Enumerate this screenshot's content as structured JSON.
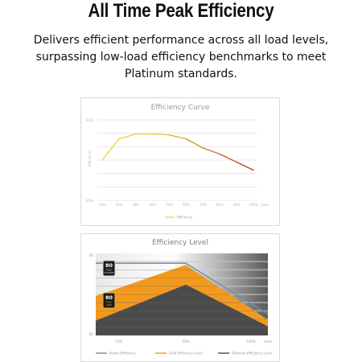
{
  "page": {
    "headline": "All Time Peak Efficiency",
    "description_line1": "Delivers efficient performance across all load levels,",
    "description_line2": "surpassing low-load efficiency benchmarks to meet",
    "description_line3": "Platinum standards."
  },
  "chart_data": [
    {
      "type": "line",
      "title": "Efficiency Curve",
      "ylabel": "Efficiency",
      "xlabel": "Load",
      "categories": [
        "10%",
        "20%",
        "30%",
        "40%",
        "50%",
        "60%",
        "70%",
        "80%",
        "90%",
        "100%"
      ],
      "y_tick_labels": [
        "93%",
        "85%"
      ],
      "ylim": [
        85,
        93
      ],
      "series": [
        {
          "name": "Efficiency",
          "values": [
            89.0,
            91.1,
            91.6,
            91.6,
            91.5,
            91.1,
            90.2,
            89.6,
            88.8,
            88.0
          ]
        }
      ],
      "colors": {
        "start": "#ead42a",
        "end": "#c02a2c"
      },
      "grid": true,
      "legend": "bottom-center"
    },
    {
      "type": "area",
      "title": "Efficiency Level",
      "xlabel": "Load",
      "categories": [
        "10%",
        "50%",
        "100%"
      ],
      "y_tick_labels": [
        "95",
        "85"
      ],
      "ylim": [
        85,
        95
      ],
      "series": [
        {
          "name": "Power Efficiency",
          "values": [
            93.8,
            93.8,
            87.6
          ],
          "color": "#6f8fa8"
        },
        {
          "name": "Gold Efficiency Level",
          "values": [
            89.8,
            93.6,
            86.9
          ],
          "color": "#f39a1e"
        },
        {
          "name": "Platinum Efficiency Level",
          "values": [
            86.8,
            91.2,
            86.1
          ],
          "color": "#4a4a4a"
        }
      ],
      "badges": [
        "80 PLUS PLATINUM",
        "80 PLUS GOLD"
      ],
      "grid": true,
      "legend": "bottom"
    }
  ]
}
